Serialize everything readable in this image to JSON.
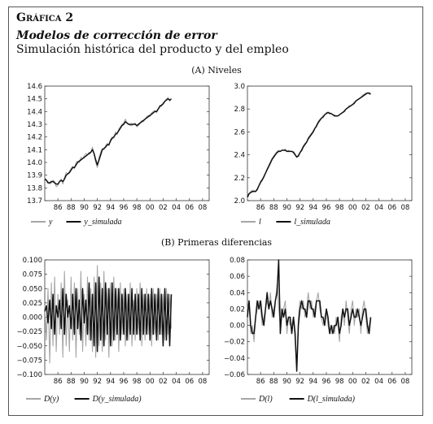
{
  "header": {
    "figure_label": "Gráfica 2",
    "title": "Modelos de corrección de error",
    "subtitle": "Simulación histórica del producto y del empleo"
  },
  "sections": {
    "a": "(A) Niveles",
    "b": "(B) Primeras diferencias"
  },
  "colors": {
    "actual": "#a6a6a6",
    "simulated": "#111111"
  },
  "chart_data": [
    {
      "id": "a-left",
      "type": "line",
      "x_start": 1984,
      "x_step": 0.25,
      "xticks": [
        "86",
        "88",
        "90",
        "92",
        "94",
        "96",
        "98",
        "00",
        "02",
        "04",
        "06",
        "08"
      ],
      "xtick_values": [
        1986,
        1988,
        1990,
        1992,
        1994,
        1996,
        1998,
        2000,
        2002,
        2004,
        2006,
        2008
      ],
      "xlim": [
        1984,
        2009
      ],
      "ylim": [
        13.7,
        14.6
      ],
      "yticks": [
        "13.7",
        "13.8",
        "13.9",
        "14.0",
        "14.1",
        "14.2",
        "14.3",
        "14.4",
        "14.5",
        "14.6"
      ],
      "ytick_values": [
        13.7,
        13.8,
        13.9,
        14.0,
        14.1,
        14.2,
        14.3,
        14.4,
        14.5,
        14.6
      ],
      "legend": [
        "y",
        "y_simulada"
      ],
      "series": [
        {
          "name": "y",
          "values": [
            13.88,
            13.86,
            13.85,
            13.83,
            13.84,
            13.86,
            13.85,
            13.81,
            13.82,
            13.85,
            13.87,
            13.83,
            13.88,
            13.92,
            13.91,
            13.93,
            13.95,
            13.97,
            13.95,
            14.0,
            14.01,
            14.0,
            14.04,
            14.03,
            14.05,
            14.07,
            14.06,
            14.08,
            14.08,
            14.12,
            14.06,
            14.0,
            13.96,
            14.04,
            14.08,
            14.11,
            14.1,
            14.13,
            14.15,
            14.13,
            14.18,
            14.2,
            14.19,
            14.24,
            14.22,
            14.26,
            14.28,
            14.3,
            14.31,
            14.34,
            14.31,
            14.3,
            14.29,
            14.29,
            14.3,
            14.31,
            14.28,
            14.29,
            14.31,
            14.33,
            14.32,
            14.34,
            14.36,
            14.37,
            14.36,
            14.39,
            14.4,
            14.41,
            14.39,
            14.42,
            14.45,
            14.44,
            14.47,
            14.48,
            14.5,
            14.51,
            14.48,
            14.5
          ]
        },
        {
          "name": "y_simulada",
          "values": [
            13.87,
            13.86,
            13.84,
            13.84,
            13.85,
            13.85,
            13.84,
            13.83,
            13.83,
            13.85,
            13.86,
            13.85,
            13.87,
            13.9,
            13.91,
            13.92,
            13.94,
            13.96,
            13.96,
            13.98,
            14.0,
            14.01,
            14.02,
            14.03,
            14.04,
            14.05,
            14.06,
            14.07,
            14.08,
            14.1,
            14.07,
            14.02,
            13.98,
            14.02,
            14.06,
            14.1,
            14.11,
            14.12,
            14.14,
            14.14,
            14.17,
            14.19,
            14.2,
            14.22,
            14.23,
            14.25,
            14.27,
            14.29,
            14.3,
            14.32,
            14.31,
            14.3,
            14.3,
            14.3,
            14.3,
            14.3,
            14.29,
            14.3,
            14.31,
            14.32,
            14.33,
            14.34,
            14.35,
            14.36,
            14.37,
            14.38,
            14.39,
            14.4,
            14.4,
            14.42,
            14.44,
            14.45,
            14.46,
            14.48,
            14.49,
            14.5,
            14.49,
            14.5
          ]
        }
      ]
    },
    {
      "id": "a-right",
      "type": "line",
      "x_start": 1984,
      "x_step": 0.25,
      "xticks": [
        "86",
        "88",
        "90",
        "92",
        "94",
        "96",
        "98",
        "00",
        "02",
        "04",
        "06",
        "08"
      ],
      "xtick_values": [
        1986,
        1988,
        1990,
        1992,
        1994,
        1996,
        1998,
        2000,
        2002,
        2004,
        2006,
        2008
      ],
      "xlim": [
        1984,
        2009
      ],
      "ylim": [
        2.0,
        3.0
      ],
      "yticks": [
        "2.0",
        "2.2",
        "2.4",
        "2.6",
        "2.8",
        "3.0"
      ],
      "ytick_values": [
        2.0,
        2.2,
        2.4,
        2.6,
        2.8,
        3.0
      ],
      "legend": [
        "l",
        "l_simulada"
      ],
      "series": [
        {
          "name": "l",
          "values": [
            2.02,
            2.06,
            2.08,
            2.09,
            2.09,
            2.08,
            2.09,
            2.13,
            2.17,
            2.19,
            2.2,
            2.24,
            2.28,
            2.31,
            2.34,
            2.37,
            2.39,
            2.41,
            2.43,
            2.44,
            2.43,
            2.44,
            2.44,
            2.45,
            2.43,
            2.44,
            2.43,
            2.43,
            2.43,
            2.41,
            2.38,
            2.4,
            2.42,
            2.45,
            2.48,
            2.5,
            2.51,
            2.55,
            2.57,
            2.59,
            2.61,
            2.63,
            2.66,
            2.69,
            2.71,
            2.72,
            2.74,
            2.75,
            2.77,
            2.77,
            2.77,
            2.76,
            2.75,
            2.75,
            2.74,
            2.74,
            2.75,
            2.76,
            2.77,
            2.79,
            2.8,
            2.81,
            2.83,
            2.83,
            2.84,
            2.86,
            2.87,
            2.88,
            2.89,
            2.9,
            2.92,
            2.93,
            2.94,
            2.94,
            2.93,
            2.93
          ]
        },
        {
          "name": "l_simulada",
          "values": [
            2.03,
            2.06,
            2.07,
            2.08,
            2.08,
            2.08,
            2.1,
            2.13,
            2.16,
            2.18,
            2.21,
            2.24,
            2.27,
            2.3,
            2.33,
            2.36,
            2.38,
            2.4,
            2.42,
            2.43,
            2.43,
            2.44,
            2.44,
            2.44,
            2.43,
            2.43,
            2.43,
            2.43,
            2.42,
            2.4,
            2.38,
            2.39,
            2.42,
            2.44,
            2.47,
            2.49,
            2.51,
            2.54,
            2.56,
            2.58,
            2.6,
            2.63,
            2.65,
            2.68,
            2.7,
            2.72,
            2.73,
            2.75,
            2.76,
            2.77,
            2.76,
            2.76,
            2.75,
            2.74,
            2.74,
            2.74,
            2.75,
            2.76,
            2.77,
            2.78,
            2.8,
            2.81,
            2.82,
            2.83,
            2.84,
            2.85,
            2.87,
            2.88,
            2.89,
            2.9,
            2.91,
            2.92,
            2.93,
            2.94,
            2.94,
            2.93
          ]
        }
      ]
    },
    {
      "id": "b-left",
      "type": "line",
      "x_start": 1984,
      "x_step": 0.25,
      "xticks": [
        "86",
        "88",
        "90",
        "92",
        "94",
        "96",
        "98",
        "00",
        "02",
        "04",
        "06",
        "08"
      ],
      "xtick_values": [
        1986,
        1988,
        1990,
        1992,
        1994,
        1996,
        1998,
        2000,
        2002,
        2004,
        2006,
        2008
      ],
      "xlim": [
        1984,
        2009
      ],
      "ylim": [
        -0.1,
        0.1
      ],
      "yticks": [
        "−0.100",
        "−0.075",
        "−0.050",
        "−0.025",
        "0.000",
        "0.025",
        "0.050",
        "0.075",
        "0.100"
      ],
      "ytick_values": [
        -0.1,
        -0.075,
        -0.05,
        -0.025,
        0.0,
        0.025,
        0.05,
        0.075,
        0.1
      ],
      "legend": [
        "D(y)",
        "D(y_simulada)"
      ],
      "series": [
        {
          "name": "D(y)",
          "values": [
            0.02,
            -0.04,
            0.05,
            -0.08,
            0.06,
            -0.05,
            0.07,
            -0.06,
            0.04,
            -0.03,
            0.06,
            -0.07,
            0.08,
            -0.05,
            0.03,
            -0.06,
            0.07,
            -0.04,
            0.06,
            -0.07,
            0.05,
            -0.03,
            0.08,
            -0.06,
            0.04,
            -0.05,
            0.07,
            -0.04,
            0.05,
            -0.06,
            0.07,
            -0.07,
            0.09,
            -0.05,
            0.06,
            -0.06,
            0.08,
            -0.04,
            0.05,
            -0.07,
            0.06,
            -0.05,
            0.07,
            -0.04,
            0.05,
            -0.06,
            0.06,
            -0.03,
            0.05,
            -0.05,
            0.04,
            -0.04,
            0.06,
            -0.05,
            0.03,
            -0.04,
            0.05,
            -0.03,
            0.06,
            -0.05,
            0.04,
            -0.04,
            0.05,
            -0.03,
            0.04,
            -0.05,
            0.05,
            -0.03,
            0.04,
            -0.04,
            0.05,
            -0.03,
            0.04,
            -0.04,
            0.05,
            -0.03,
            0.04,
            -0.02
          ]
        },
        {
          "name": "D(y_simulada)",
          "values": [
            0.01,
            0.02,
            -0.01,
            0.03,
            -0.02,
            0.04,
            -0.03,
            0.02,
            0.0,
            0.03,
            -0.02,
            0.05,
            -0.03,
            0.04,
            0.0,
            0.02,
            -0.02,
            0.04,
            -0.03,
            0.05,
            -0.02,
            0.03,
            -0.04,
            0.05,
            -0.01,
            0.03,
            -0.03,
            0.06,
            -0.04,
            0.04,
            -0.05,
            0.06,
            -0.06,
            0.07,
            -0.04,
            0.05,
            -0.05,
            0.06,
            -0.03,
            0.05,
            -0.05,
            0.06,
            -0.04,
            0.05,
            -0.03,
            0.05,
            -0.04,
            0.04,
            -0.03,
            0.05,
            -0.04,
            0.04,
            -0.03,
            0.05,
            -0.03,
            0.04,
            -0.03,
            0.04,
            -0.04,
            0.05,
            -0.03,
            0.04,
            -0.03,
            0.04,
            -0.04,
            0.05,
            -0.03,
            0.04,
            -0.04,
            0.05,
            -0.03,
            0.04,
            -0.05,
            0.05,
            -0.04,
            0.04,
            -0.05,
            0.04
          ]
        }
      ]
    },
    {
      "id": "b-right",
      "type": "line",
      "x_start": 1984,
      "x_step": 0.25,
      "xticks": [
        "86",
        "88",
        "90",
        "92",
        "94",
        "96",
        "98",
        "00",
        "02",
        "04",
        "06",
        "08"
      ],
      "xtick_values": [
        1986,
        1988,
        1990,
        1992,
        1994,
        1996,
        1998,
        2000,
        2002,
        2004,
        2006,
        2008
      ],
      "xlim": [
        1984,
        2009
      ],
      "ylim": [
        -0.06,
        0.08
      ],
      "yticks": [
        "−0.06",
        "−0.04",
        "−0.02",
        "0.00",
        "0.02",
        "0.04",
        "0.06",
        "0.08"
      ],
      "ytick_values": [
        -0.06,
        -0.04,
        -0.02,
        0.0,
        0.02,
        0.04,
        0.06,
        0.08
      ],
      "legend": [
        "D(l)",
        "D(l_simulada)"
      ],
      "series": [
        {
          "name": "D(l)",
          "values": [
            0.02,
            0.03,
            -0.01,
            0.0,
            -0.02,
            0.01,
            0.02,
            0.03,
            0.02,
            0.0,
            0.01,
            0.02,
            0.03,
            0.02,
            0.04,
            0.01,
            0.02,
            0.03,
            0.05,
            0.02,
            0.0,
            0.01,
            0.02,
            0.03,
            -0.01,
            0.01,
            0.0,
            0.0,
            0.01,
            -0.02,
            -0.05,
            0.01,
            0.03,
            0.02,
            0.03,
            0.01,
            0.02,
            0.04,
            0.02,
            0.03,
            0.01,
            0.02,
            0.03,
            0.04,
            0.02,
            0.01,
            0.0,
            0.01,
            0.02,
            0.0,
            -0.01,
            -0.01,
            0.0,
            -0.01,
            0.01,
            0.0,
            -0.02,
            0.01,
            0.02,
            0.0,
            0.03,
            0.01,
            -0.01,
            0.02,
            0.03,
            0.0,
            0.02,
            0.01,
            0.02,
            -0.01,
            0.02,
            0.03,
            0.01,
            -0.01,
            0.0,
            0.01
          ]
        },
        {
          "name": "D(l_simulada)",
          "values": [
            0.01,
            0.03,
            0.0,
            -0.01,
            -0.01,
            0.01,
            0.03,
            0.02,
            0.03,
            0.01,
            0.0,
            0.02,
            0.04,
            0.02,
            0.03,
            0.02,
            0.01,
            0.03,
            0.04,
            0.08,
            -0.01,
            0.02,
            0.01,
            0.02,
            0.0,
            0.01,
            0.01,
            -0.01,
            0.01,
            -0.01,
            -0.056,
            0.0,
            0.02,
            0.03,
            0.02,
            0.02,
            0.01,
            0.03,
            0.03,
            0.02,
            0.02,
            0.01,
            0.03,
            0.03,
            0.03,
            0.01,
            0.01,
            0.0,
            0.02,
            0.01,
            -0.01,
            0.0,
            -0.01,
            0.0,
            0.0,
            0.01,
            -0.01,
            0.0,
            0.02,
            0.01,
            0.02,
            0.02,
            0.0,
            0.01,
            0.02,
            0.01,
            0.01,
            0.02,
            0.01,
            0.0,
            0.01,
            0.02,
            0.02,
            0.0,
            -0.01,
            0.01
          ]
        }
      ]
    }
  ]
}
